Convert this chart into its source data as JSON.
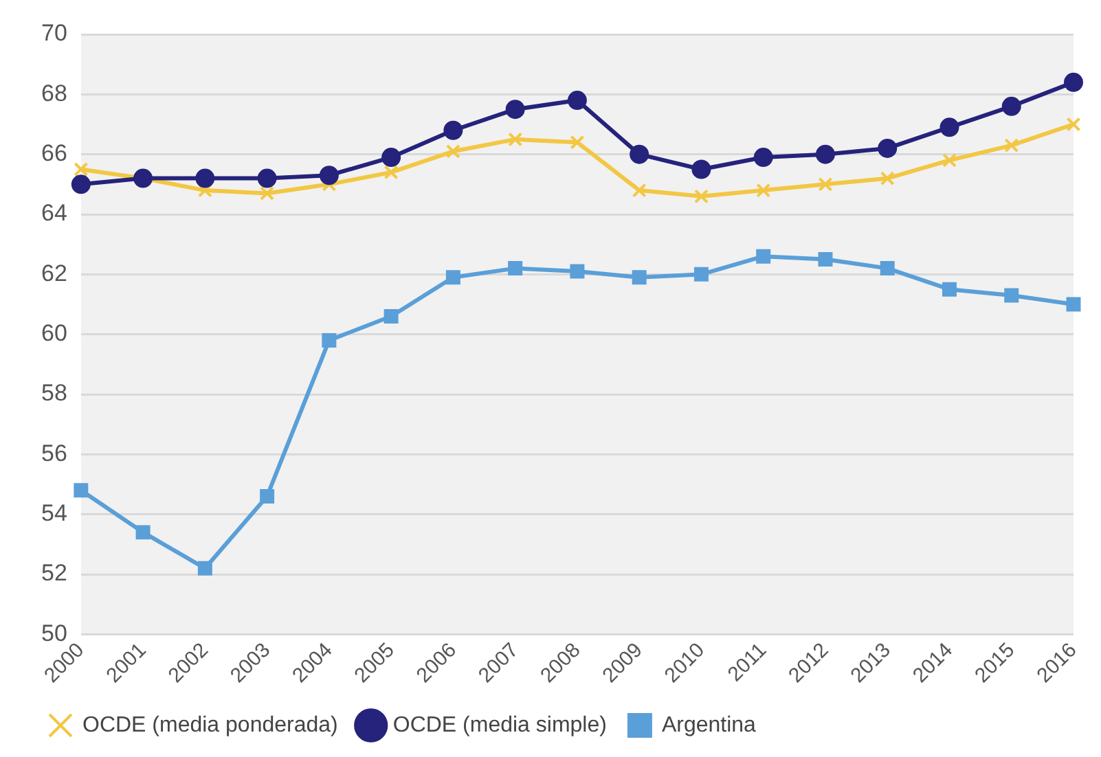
{
  "chart_data": {
    "type": "line",
    "categories": [
      "2000",
      "2001",
      "2002",
      "2003",
      "2004",
      "2005",
      "2006",
      "2007",
      "2008",
      "2009",
      "2010",
      "2011",
      "2012",
      "2013",
      "2014",
      "2015",
      "2016"
    ],
    "series": [
      {
        "name": "OCDE (media ponderada)",
        "color": "#f2c744",
        "marker": "cross",
        "values": [
          65.5,
          65.2,
          64.8,
          64.7,
          65.0,
          65.4,
          66.1,
          66.5,
          66.4,
          64.8,
          64.6,
          64.8,
          65.0,
          65.2,
          65.8,
          66.3,
          67.0
        ]
      },
      {
        "name": "OCDE (media simple)",
        "color": "#25237b",
        "marker": "circle",
        "values": [
          65.0,
          65.2,
          65.2,
          65.2,
          65.3,
          65.9,
          66.8,
          67.5,
          67.8,
          66.0,
          65.5,
          65.9,
          66.0,
          66.2,
          66.9,
          67.6,
          68.4
        ]
      },
      {
        "name": "Argentina",
        "color": "#5a9fd8",
        "marker": "square",
        "values": [
          54.8,
          53.4,
          52.2,
          54.6,
          59.8,
          60.6,
          61.9,
          62.2,
          62.1,
          61.9,
          62.0,
          62.6,
          62.5,
          62.2,
          61.5,
          61.3,
          61.0
        ]
      }
    ],
    "ylim": [
      50,
      70
    ],
    "yticks": [
      50,
      52,
      54,
      56,
      58,
      60,
      62,
      64,
      66,
      68,
      70
    ],
    "grid": "y",
    "legend": "bottom"
  }
}
